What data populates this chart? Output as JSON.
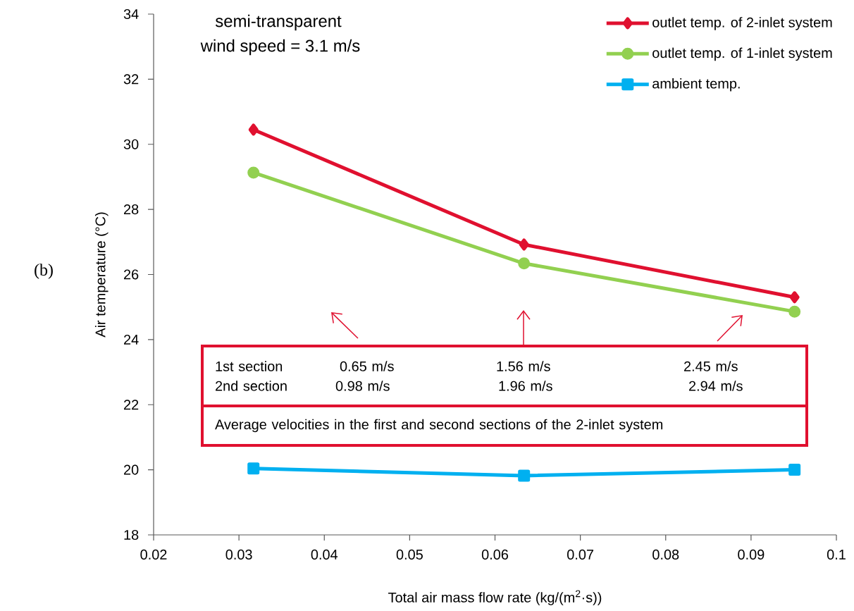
{
  "chart_data": {
    "type": "line",
    "title": "semi-transparent",
    "subtitle": "wind speed = 3.1 m/s",
    "xlabel": "Total air mass flow rate (kg/(m$^{2}$·s))",
    "ylabel": "Air temperature (°C)",
    "x": [
      0.0317,
      0.0634,
      0.0951
    ],
    "series": [
      {
        "name": "outlet temp. of 2-inlet system",
        "color": "#e0102f",
        "marker": "diamond",
        "values": [
          30.45,
          26.92,
          25.3
        ]
      },
      {
        "name": "outlet temp. of 1-inlet system",
        "color": "#92d050",
        "marker": "circle",
        "values": [
          29.13,
          26.34,
          24.86
        ]
      },
      {
        "name": "ambient temp.",
        "color": "#00b0f0",
        "marker": "square",
        "values": [
          20.04,
          19.82,
          20.0
        ]
      }
    ],
    "xlim": [
      0.02,
      0.1
    ],
    "xticks": [
      0.02,
      0.03,
      0.04,
      0.05,
      0.06,
      0.07,
      0.08,
      0.09,
      0.1
    ],
    "ylim": [
      18,
      34
    ],
    "yticks": [
      18,
      20,
      22,
      24,
      26,
      28,
      30,
      32,
      34
    ],
    "grid": false,
    "legend": "top right",
    "line_style": "solid",
    "annotations": [
      "(b)",
      "1st section",
      "0.65 m/s",
      "1.56 m/s",
      "2.45 m/s",
      "2nd section",
      "0.98 m/s",
      "1.96 m/s",
      "2.94 m/s",
      "Average velocities in the first and second sections of the 2-inlet system"
    ]
  }
}
